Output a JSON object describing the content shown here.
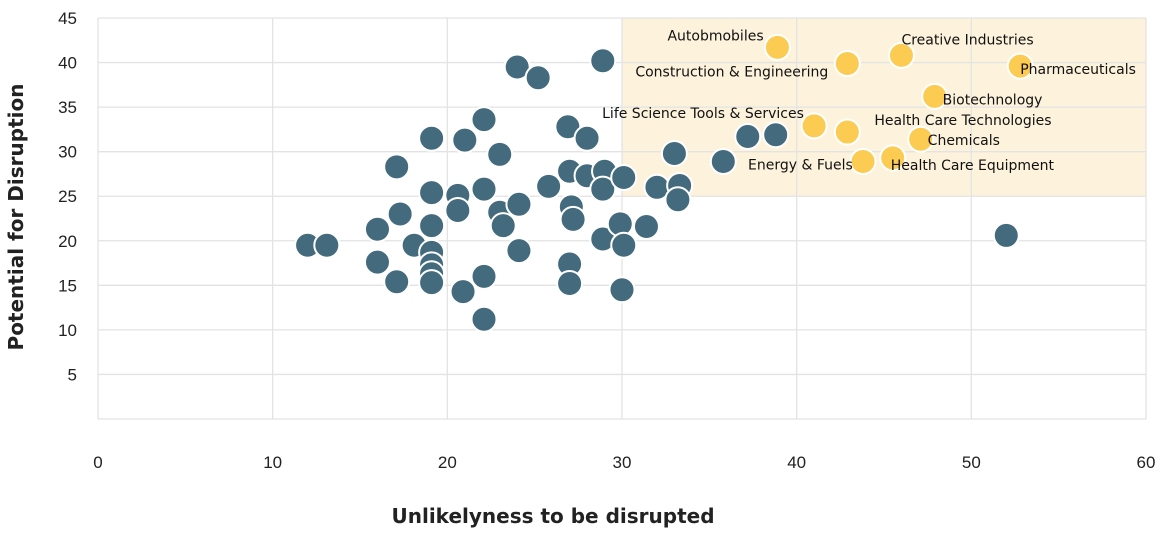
{
  "chart_data": {
    "type": "scatter",
    "xlabel": "Unlikelyness to be disrupted",
    "ylabel": "Potential for Disruption",
    "xlim": [
      0,
      60
    ],
    "ylim": [
      0,
      45
    ],
    "xticks": [
      0,
      10,
      20,
      30,
      40,
      50,
      60
    ],
    "yticks": [
      5,
      10,
      15,
      20,
      25,
      30,
      35,
      40,
      45
    ],
    "grid": true,
    "highlight_region": {
      "x": [
        30,
        60
      ],
      "y": [
        25,
        45
      ],
      "color": "#fdf3dc"
    },
    "colors": {
      "default": "#436a7d",
      "highlight": "#fccb52"
    },
    "series": [
      {
        "points": [
          [
            12,
            19.5
          ],
          [
            13.1,
            19.5
          ],
          [
            16,
            21.3
          ],
          [
            16,
            17.6
          ],
          [
            17.1,
            28.3
          ],
          [
            17.3,
            23
          ],
          [
            17.1,
            15.4
          ],
          [
            18.1,
            19.5
          ],
          [
            19.1,
            31.5
          ],
          [
            19.1,
            25.4
          ],
          [
            19.1,
            21.7
          ],
          [
            19.1,
            18.7
          ],
          [
            19.1,
            17.3
          ],
          [
            19.1,
            16.3
          ],
          [
            19.1,
            15.3
          ],
          [
            20.6,
            25.1
          ],
          [
            20.6,
            23.4
          ],
          [
            20.9,
            14.3
          ],
          [
            21.0,
            31.3
          ],
          [
            22.1,
            33.6
          ],
          [
            22.1,
            25.8
          ],
          [
            22.1,
            16.0
          ],
          [
            22.1,
            11.2
          ],
          [
            23.0,
            29.7
          ],
          [
            23.0,
            23.2
          ],
          [
            23.2,
            21.7
          ],
          [
            24.0,
            39.5
          ],
          [
            24.1,
            24.1
          ],
          [
            24.1,
            18.9
          ],
          [
            25.2,
            38.3
          ],
          [
            25.8,
            26.1
          ],
          [
            26.9,
            32.8
          ],
          [
            27.0,
            27.8
          ],
          [
            27.1,
            23.8
          ],
          [
            27.2,
            22.4
          ],
          [
            27.0,
            17.4
          ],
          [
            27.0,
            15.2
          ],
          [
            28.0,
            31.5
          ],
          [
            28.0,
            27.3
          ],
          [
            28.9,
            40.2
          ],
          [
            29.0,
            27.8
          ],
          [
            28.9,
            25.8
          ],
          [
            28.9,
            20.2
          ],
          [
            30.1,
            27.1
          ],
          [
            29.9,
            21.9
          ],
          [
            30.1,
            19.5
          ],
          [
            30.0,
            14.5
          ],
          [
            31.4,
            21.6
          ],
          [
            32.0,
            26.0
          ],
          [
            33.0,
            29.8
          ],
          [
            33.3,
            26.2
          ],
          [
            33.2,
            24.6
          ],
          [
            35.8,
            28.9
          ],
          [
            37.2,
            31.7
          ],
          [
            38.8,
            31.9
          ],
          [
            52.0,
            20.6
          ]
        ]
      },
      {
        "points": [
          {
            "x": 38.9,
            "y": 41.7,
            "label": "Autobmobiles"
          },
          {
            "x": 46.0,
            "y": 40.8,
            "label": "Creative Industries"
          },
          {
            "x": 42.9,
            "y": 39.9,
            "label": "Construction & Engineering"
          },
          {
            "x": 52.8,
            "y": 39.6,
            "label": "Pharmaceuticals"
          },
          {
            "x": 47.9,
            "y": 36.2,
            "label": "Biotechnology"
          },
          {
            "x": 41.0,
            "y": 32.9,
            "label": "Life Science Tools & Services"
          },
          {
            "x": 42.9,
            "y": 32.2,
            "label": "Health Care Technologies"
          },
          {
            "x": 47.1,
            "y": 31.4,
            "label": "Chemicals"
          },
          {
            "x": 43.8,
            "y": 28.9,
            "label": "Energy & Fuels"
          },
          {
            "x": 45.5,
            "y": 29.3,
            "label": "Health Care Equipment"
          }
        ]
      }
    ]
  }
}
